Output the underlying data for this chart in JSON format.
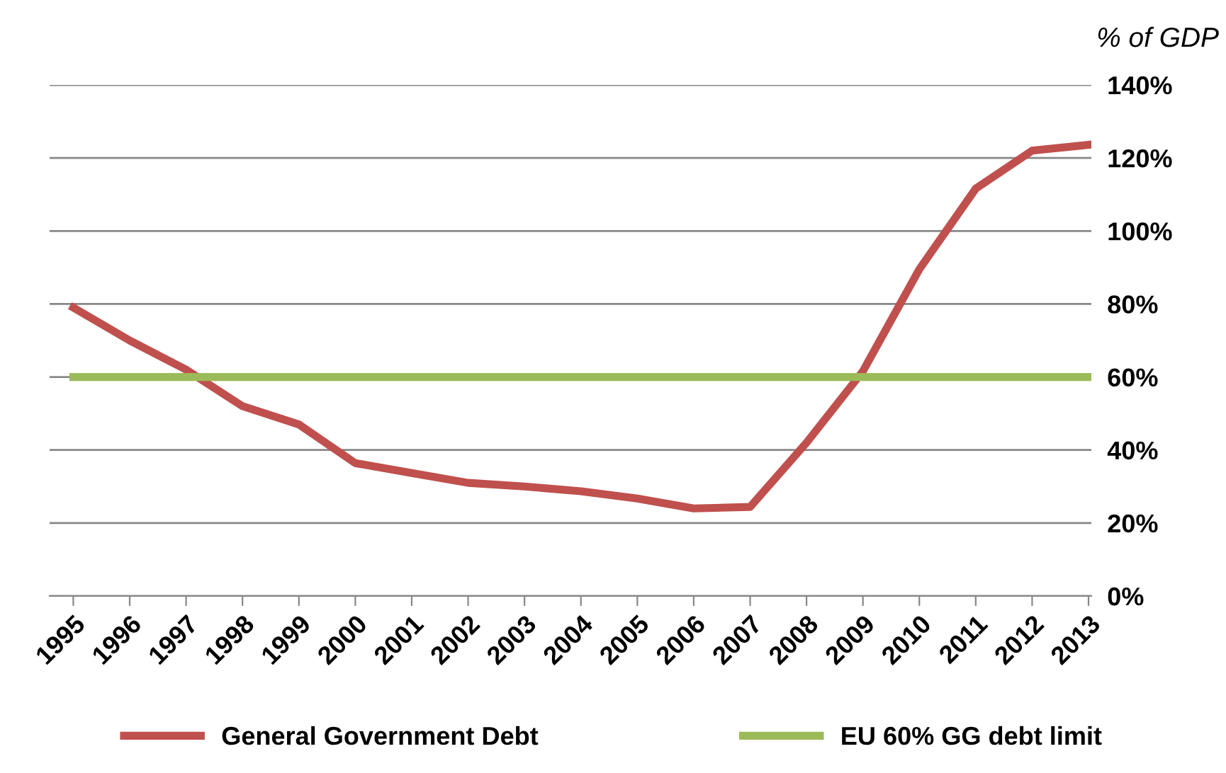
{
  "chart_data": {
    "type": "line",
    "ylabel": "% of GDP",
    "categories": [
      "1995",
      "1996",
      "1997",
      "1998",
      "1999",
      "2000",
      "2001",
      "2002",
      "2003",
      "2004",
      "2005",
      "2006",
      "2007",
      "2008",
      "2009",
      "2010",
      "2011",
      "2012",
      "2013"
    ],
    "series": [
      {
        "name": "General Government Debt",
        "color": "#c0504d",
        "values": [
          79,
          70,
          62,
          52,
          47,
          36.4,
          33.7,
          31,
          30,
          28.7,
          26.7,
          24,
          24.4,
          42,
          61.6,
          89.5,
          111.6,
          122,
          123.6
        ]
      },
      {
        "name": "EU 60% GG debt limit",
        "color": "#9bbb59",
        "values": [
          60,
          60,
          60,
          60,
          60,
          60,
          60,
          60,
          60,
          60,
          60,
          60,
          60,
          60,
          60,
          60,
          60,
          60,
          60
        ]
      }
    ],
    "ylim": [
      0,
      140
    ],
    "yticks": [
      {
        "value": 0,
        "label": "0%"
      },
      {
        "value": 20,
        "label": "20%"
      },
      {
        "value": 40,
        "label": "40%"
      },
      {
        "value": 60,
        "label": "60%"
      },
      {
        "value": 80,
        "label": "80%"
      },
      {
        "value": 100,
        "label": "100%"
      },
      {
        "value": 120,
        "label": "120%"
      },
      {
        "value": 140,
        "label": "140%"
      }
    ],
    "grid": "y",
    "legend": "bottom",
    "marker": "none",
    "line_style": "solid"
  }
}
